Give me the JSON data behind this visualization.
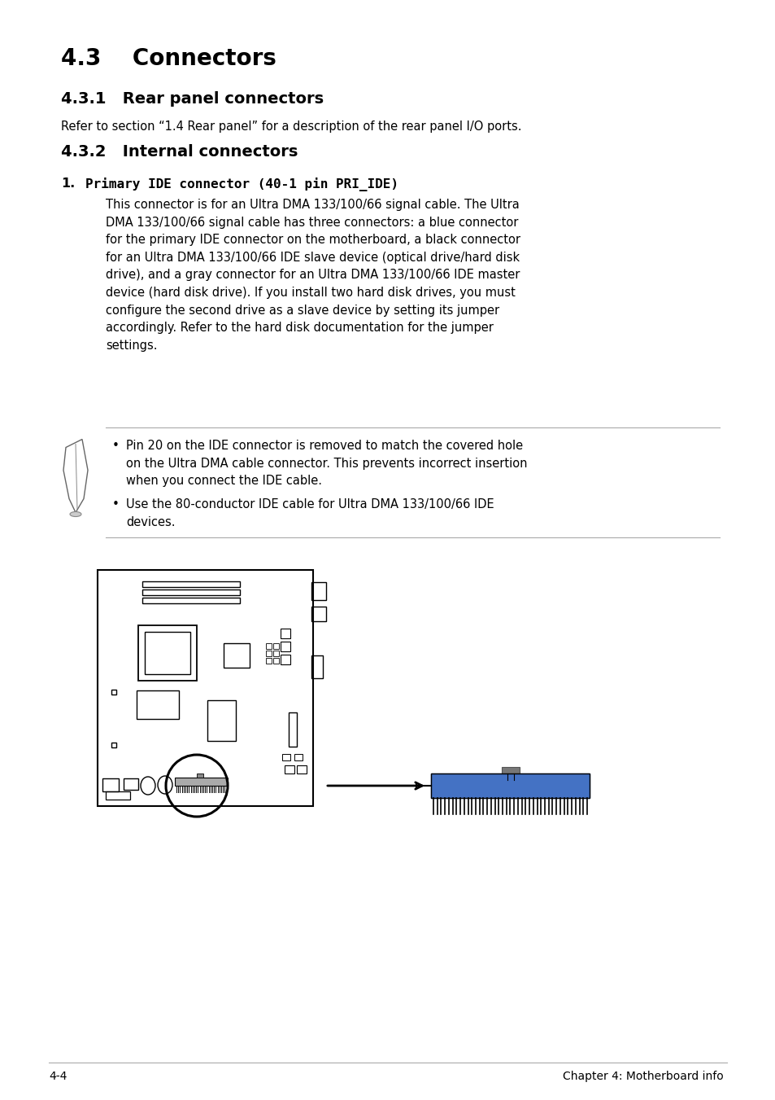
{
  "title_43": "4.3    Connectors",
  "title_431": "4.3.1   Rear panel connectors",
  "body_431": "Refer to section “1.4 Rear panel” for a description of the rear panel I/O ports.",
  "title_432": "4.3.2   Internal connectors",
  "item1_num": "1.",
  "item1_title": "Primary IDE connector (40-1 pin PRI_IDE)",
  "item1_body": "This connector is for an Ultra DMA 133/100/66 signal cable. The Ultra\nDMA 133/100/66 signal cable has three connectors: a blue connector\nfor the primary IDE connector on the motherboard, a black connector\nfor an Ultra DMA 133/100/66 IDE slave device (optical drive/hard disk\ndrive), and a gray connector for an Ultra DMA 133/100/66 IDE master\ndevice (hard disk drive). If you install two hard disk drives, you must\nconfigure the second drive as a slave device by setting its jumper\naccordingly. Refer to the hard disk documentation for the jumper\nsettings.",
  "note1": "Pin 20 on the IDE connector is removed to match the covered hole\non the Ultra DMA cable connector. This prevents incorrect insertion\nwhen you connect the IDE cable.",
  "note2": "Use the 80-conductor IDE cable for Ultra DMA 133/100/66 IDE\ndevices.",
  "footer_left": "4-4",
  "footer_right": "Chapter 4: Motherboard info",
  "bg_color": "#ffffff",
  "text_color": "#000000",
  "blue_connector": "#4472c4",
  "rule_color": "#aaaaaa"
}
